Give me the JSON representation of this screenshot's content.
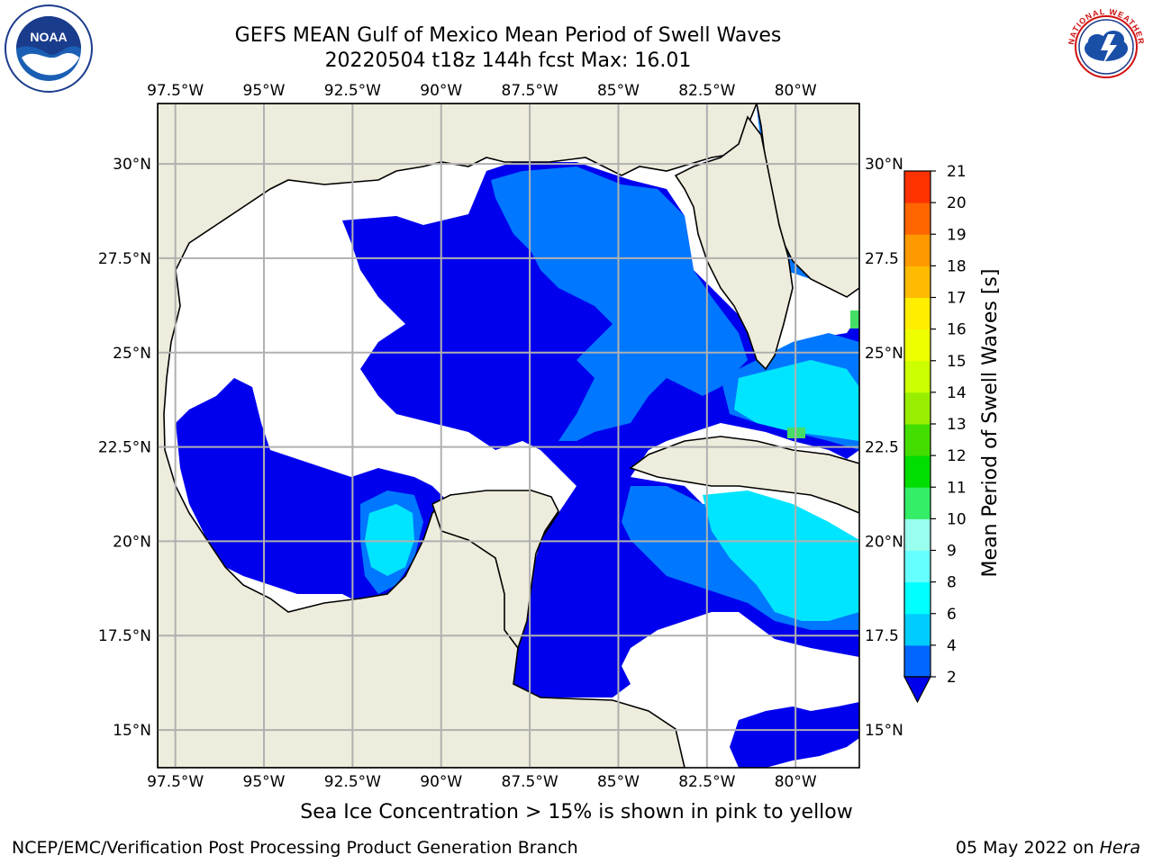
{
  "header": {
    "title": "GEFS MEAN Gulf of Mexico Mean Period of Swell Waves",
    "subtitle": "20220504 t18z 144h fcst   Max: 16.01"
  },
  "logos": {
    "left": "noaa-logo",
    "right": "national-weather-service-logo"
  },
  "map": {
    "lon_ticks_top": [
      "97.5°W",
      "95°W",
      "92.5°W",
      "90°W",
      "87.5°W",
      "85°W",
      "82.5°W",
      "80°W"
    ],
    "lon_ticks_bottom": [
      "97.5°W",
      "95°W",
      "92.5°W",
      "90°W",
      "87.5°W",
      "85°W",
      "82.5°W",
      "80°W"
    ],
    "lat_ticks_left": [
      "30°N",
      "27.5°N",
      "25°N",
      "22.5°N",
      "20°N",
      "17.5°N",
      "15°N"
    ],
    "lat_ticks_right": [
      "30°N",
      "27.5",
      "25°N",
      "22.5",
      "20°N",
      "17.5",
      "15°N"
    ],
    "lon_values": [
      -97.5,
      -95,
      -92.5,
      -90,
      -87.5,
      -85,
      -82.5,
      -80
    ],
    "lat_values": [
      30,
      27.5,
      25,
      22.5,
      20,
      17.5,
      15
    ],
    "extent": {
      "lon_min": -98,
      "lon_max": -78.2,
      "lat_min": 14,
      "lat_max": 31.6
    },
    "land_color": "#eeecdc",
    "grid_color": "#b0b0b0"
  },
  "colorbar": {
    "label": "Mean Period of Swell Waves [s]",
    "tick_labels": [
      "21",
      "20",
      "19",
      "18",
      "17",
      "16",
      "15",
      "14",
      "13",
      "12",
      "11",
      "10",
      "9",
      "8",
      "6",
      "4",
      "2"
    ],
    "levels": [
      2,
      4,
      6,
      8,
      9,
      10,
      11,
      12,
      13,
      14,
      15,
      16,
      17,
      18,
      19,
      20,
      21
    ],
    "colors": [
      "#0066ff",
      "#00ccff",
      "#00ffff",
      "#66ffff",
      "#99ffee",
      "#33ee66",
      "#00dd00",
      "#44dd00",
      "#99ee00",
      "#ccff00",
      "#eeff00",
      "#ffee00",
      "#ffbb00",
      "#ff9900",
      "#ff6600",
      "#ff3300",
      "#ff0000"
    ],
    "underflow_color": "#0000ee"
  },
  "footer": {
    "sea_ice_note": "Sea Ice Concentration > 15% is shown in pink to yellow",
    "credit": "NCEP/EMC/Verification Post Processing Product Generation Branch",
    "date": "05 May 2022 on ",
    "system": "Hera"
  }
}
